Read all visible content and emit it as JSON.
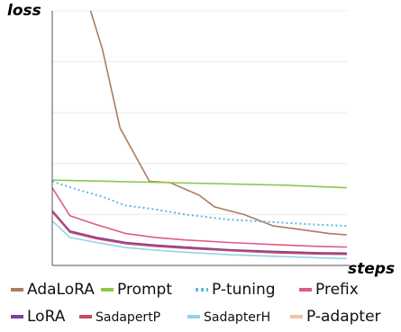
{
  "chart_data": {
    "type": "line",
    "xlabel": "steps",
    "ylabel": "loss",
    "xlim": [
      0,
      10
    ],
    "ylim": [
      0,
      10
    ],
    "x": [
      0,
      1,
      2,
      3,
      4,
      5,
      6,
      7,
      8,
      9,
      10
    ],
    "grid": true,
    "legend_position": "bottom",
    "series": [
      {
        "name": "AdaLoRA",
        "color": "#b07a5e",
        "dash": "solid",
        "points": [
          [
            1.3,
            10.0
          ],
          [
            1.7,
            8.5
          ],
          [
            2.3,
            5.4
          ],
          [
            3.3,
            3.3
          ],
          [
            4.0,
            3.25
          ],
          [
            5.0,
            2.75
          ],
          [
            5.5,
            2.3
          ],
          [
            6.5,
            2.0
          ],
          [
            7.5,
            1.55
          ],
          [
            8.5,
            1.4
          ],
          [
            9.4,
            1.25
          ],
          [
            10,
            1.2
          ]
        ]
      },
      {
        "name": "Prompt",
        "color": "#8cc84b",
        "dash": "solid",
        "points": [
          [
            0,
            3.35
          ],
          [
            2,
            3.3
          ],
          [
            4,
            3.25
          ],
          [
            6,
            3.2
          ],
          [
            8,
            3.15
          ],
          [
            10,
            3.05
          ]
        ]
      },
      {
        "name": "P-tuning",
        "color": "#5eb6e0",
        "dash": "dotted",
        "points": [
          [
            0,
            3.3
          ],
          [
            0.8,
            3.0
          ],
          [
            1.7,
            2.7
          ],
          [
            2.5,
            2.35
          ],
          [
            3.5,
            2.2
          ],
          [
            4.5,
            2.0
          ],
          [
            6,
            1.8
          ],
          [
            7.5,
            1.7
          ],
          [
            9,
            1.6
          ],
          [
            10,
            1.55
          ]
        ]
      },
      {
        "name": "Prefix",
        "color": "#de5b8a",
        "dash": "solid",
        "points": [
          [
            0,
            3.05
          ],
          [
            0.6,
            1.95
          ],
          [
            1.5,
            1.6
          ],
          [
            2.5,
            1.25
          ],
          [
            3.5,
            1.1
          ],
          [
            4.5,
            1.0
          ],
          [
            6,
            0.9
          ],
          [
            7.5,
            0.82
          ],
          [
            9,
            0.75
          ],
          [
            10,
            0.72
          ]
        ]
      },
      {
        "name": "LoRA",
        "color": "#7b3fa6",
        "dash": "solid",
        "points": [
          [
            0,
            2.15
          ],
          [
            0.6,
            1.35
          ],
          [
            1.5,
            1.1
          ],
          [
            2.5,
            0.9
          ],
          [
            3.5,
            0.8
          ],
          [
            4.5,
            0.72
          ],
          [
            6,
            0.62
          ],
          [
            7.5,
            0.55
          ],
          [
            9,
            0.5
          ],
          [
            10,
            0.48
          ]
        ]
      },
      {
        "name": "SadapertP",
        "color": "#c94a63",
        "dash": "solid",
        "points": [
          [
            0,
            2.1
          ],
          [
            0.6,
            1.3
          ],
          [
            1.5,
            1.05
          ],
          [
            2.5,
            0.85
          ],
          [
            3.5,
            0.75
          ],
          [
            4.5,
            0.67
          ],
          [
            6,
            0.58
          ],
          [
            7.5,
            0.5
          ],
          [
            9,
            0.45
          ],
          [
            10,
            0.43
          ]
        ]
      },
      {
        "name": "SadapterH",
        "color": "#94d3e6",
        "dash": "solid",
        "points": [
          [
            0,
            1.75
          ],
          [
            0.6,
            1.1
          ],
          [
            1.5,
            0.9
          ],
          [
            2.5,
            0.7
          ],
          [
            3.5,
            0.6
          ],
          [
            4.5,
            0.52
          ],
          [
            6,
            0.42
          ],
          [
            7.5,
            0.36
          ],
          [
            9,
            0.3
          ],
          [
            10,
            0.27
          ]
        ]
      },
      {
        "name": "P-adapter",
        "color": "#f2c4a2",
        "dash": "solid",
        "points": []
      }
    ]
  }
}
